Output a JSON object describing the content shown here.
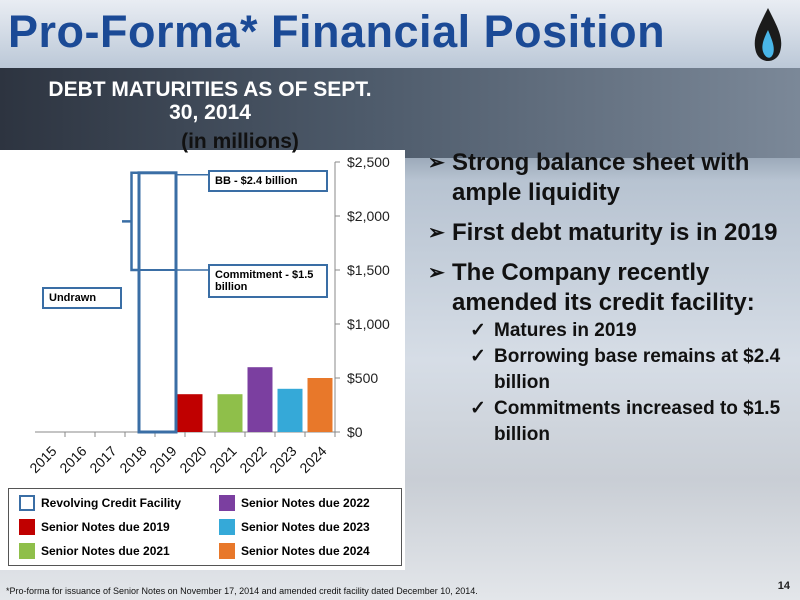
{
  "slide": {
    "title": "Pro-Forma* Financial Position",
    "bullets": [
      "Strong balance sheet with ample liquidity",
      "First debt maturity is in 2019",
      "The Company recently amended its credit facility:"
    ],
    "sub_bullets": [
      "Matures in 2019",
      "Borrowing base remains at $2.4 billion",
      "Commitments increased to $1.5 billion"
    ],
    "footnote": "*Pro-forma for issuance of Senior Notes on November 17, 2014 and amended credit facility dated December 10, 2014.",
    "page_number": "14"
  },
  "chart_data": {
    "type": "bar",
    "title": "DEBT MATURITIES AS OF SEPT. 30, 2014",
    "subtitle": "(in millions)",
    "categories": [
      "2015",
      "2016",
      "2017",
      "2018",
      "2019",
      "2020",
      "2021",
      "2022",
      "2023",
      "2024"
    ],
    "series": [
      {
        "name": "Revolving Credit Facility",
        "color": "#3a6ea5",
        "style": "outline",
        "values": [
          null,
          null,
          null,
          null,
          2400,
          null,
          null,
          null,
          null,
          null
        ]
      },
      {
        "name": "Senior Notes due 2019",
        "color": "#c00000",
        "values": [
          null,
          null,
          null,
          null,
          350,
          null,
          null,
          null,
          null,
          null
        ]
      },
      {
        "name": "Senior Notes due 2021",
        "color": "#8fbf4a",
        "values": [
          null,
          null,
          null,
          null,
          null,
          null,
          350,
          null,
          null,
          null
        ]
      },
      {
        "name": "Senior Notes due 2022",
        "color": "#7b3fa0",
        "values": [
          null,
          null,
          null,
          null,
          null,
          null,
          null,
          600,
          null,
          null
        ]
      },
      {
        "name": "Senior Notes due 2023",
        "color": "#35a9d8",
        "values": [
          null,
          null,
          null,
          null,
          null,
          null,
          null,
          null,
          400,
          null
        ]
      },
      {
        "name": "Senior Notes due 2024",
        "color": "#e8782a",
        "values": [
          null,
          null,
          null,
          null,
          null,
          null,
          null,
          null,
          null,
          500
        ]
      }
    ],
    "annotations": [
      {
        "text": "BB - $2.4 billion",
        "value": 2400
      },
      {
        "text": "Commitment - $1.5 billion",
        "value": 1500
      },
      {
        "text": "Undrawn"
      }
    ],
    "ylim": [
      0,
      2500
    ],
    "yticks": [
      {
        "value": 0,
        "label": "$0"
      },
      {
        "value": 500,
        "label": "$500"
      },
      {
        "value": 1000,
        "label": "$1,000"
      },
      {
        "value": 1500,
        "label": "$1,500"
      },
      {
        "value": 2000,
        "label": "$2,000"
      },
      {
        "value": 2500,
        "label": "$2,500"
      }
    ],
    "y_axis_side": "right",
    "grid": false
  }
}
